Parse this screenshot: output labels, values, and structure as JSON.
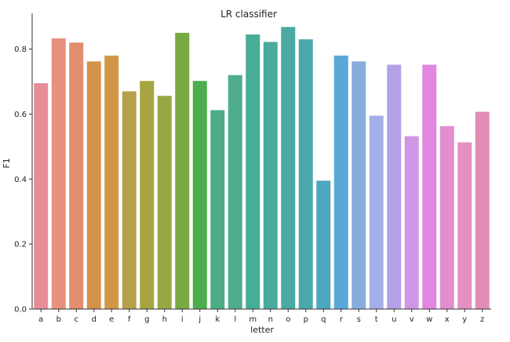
{
  "chart_data": {
    "type": "bar",
    "title": "LR classifier",
    "xlabel": "letter",
    "ylabel": "F1",
    "categories": [
      "a",
      "b",
      "c",
      "d",
      "e",
      "f",
      "g",
      "h",
      "i",
      "j",
      "k",
      "l",
      "m",
      "n",
      "o",
      "p",
      "q",
      "r",
      "s",
      "t",
      "u",
      "v",
      "w",
      "x",
      "y",
      "z"
    ],
    "values": [
      0.695,
      0.833,
      0.82,
      0.762,
      0.78,
      0.67,
      0.702,
      0.656,
      0.85,
      0.702,
      0.612,
      0.72,
      0.845,
      0.822,
      0.868,
      0.83,
      0.395,
      0.78,
      0.762,
      0.595,
      0.752,
      0.532,
      0.752,
      0.563,
      0.513,
      0.607
    ],
    "colors": [
      "#e88d97",
      "#e8917e",
      "#e18f6e",
      "#d4934b",
      "#d09846",
      "#b6a04b",
      "#a6a542",
      "#97a843",
      "#79a941",
      "#4cae4c",
      "#4cad85",
      "#4fac8d",
      "#48ad96",
      "#49ab9d",
      "#4aa9a3",
      "#4ba8ab",
      "#4ca7bf",
      "#58a8d8",
      "#89acdf",
      "#a4aee7",
      "#b4a0e8",
      "#d096e6",
      "#e286df",
      "#e28ecf",
      "#e490c2",
      "#e28db6"
    ],
    "yticks": [
      0.0,
      0.2,
      0.4,
      0.6,
      0.8
    ],
    "ytick_labels": [
      "0.0",
      "0.2",
      "0.4",
      "0.6",
      "0.8"
    ],
    "ylim": [
      0,
      0.91
    ],
    "grid": false
  }
}
